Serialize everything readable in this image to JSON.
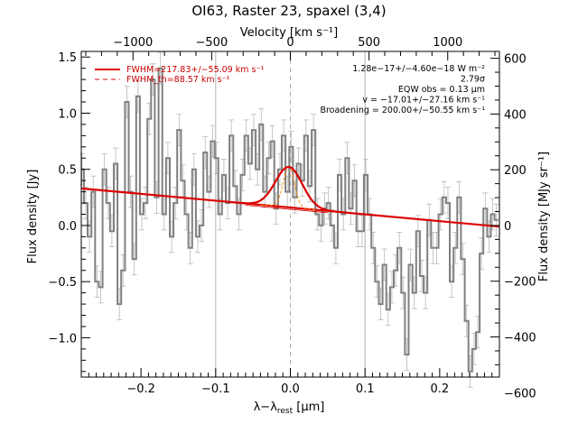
{
  "chart_data": {
    "type": "line",
    "title": "OI63, Raster 23, spaxel (3,4)",
    "xlabel": "λ−λrest [μm]",
    "ylabel_left": "Flux density [Jy]",
    "ylabel_right": "Flux density [MJy sr⁻¹]",
    "xlabel_top": "Velocity [km s⁻¹]",
    "xlim": [
      -0.28,
      0.28
    ],
    "ylim": [
      -1.35,
      1.55
    ],
    "xticks": [
      -0.2,
      -0.1,
      0.0,
      0.1,
      0.2
    ],
    "xtick_labels": [
      "−0.2",
      "−0.1",
      "0.0",
      "0.1",
      "0.2"
    ],
    "yticks": [
      -1.0,
      -0.5,
      0.0,
      0.5,
      1.0,
      1.5
    ],
    "ytick_labels": [
      "−1.0",
      "−0.5",
      "0.0",
      "0.5",
      "1.0",
      "1.5"
    ],
    "top_ticks": [
      -1000,
      -500,
      0,
      500,
      1000
    ],
    "top_tick_labels": [
      "−1000",
      "−500",
      "0",
      "500",
      "1000"
    ],
    "right_ticks": [
      -600,
      -400,
      -200,
      0,
      200,
      400,
      600
    ],
    "right_tick_labels": [
      "−600",
      "−400",
      "−200",
      "0",
      "200",
      "400",
      "600"
    ],
    "vlines": [
      -0.1,
      0.0,
      0.1
    ],
    "legend": [
      {
        "label": "FWHM=217.83+/−55.09 km s⁻¹",
        "color": "#dd0000",
        "style": "solid"
      },
      {
        "label": "FWHM_th=88.57 km s⁻¹",
        "color": "#dd0000",
        "style": "dashed"
      }
    ],
    "annotations": [
      "1.28e−17+/−4.60e−18 W m⁻²",
      "2.79σ",
      "EQW obs = 0.13 μm",
      "v = −17.01+/−27.16 km s⁻¹",
      "Broadening = 200.00+/−50.55 km s⁻¹"
    ],
    "baseline": {
      "x": [
        -0.28,
        0.28
      ],
      "y": [
        0.33,
        -0.01
      ]
    },
    "gaussian": {
      "center": -0.002,
      "amplitude": 0.36,
      "sigma": 0.018
    },
    "thermal_gaussian": {
      "center": -0.002,
      "amplitude": 0.36,
      "sigma": 0.0075
    },
    "colors": {
      "data": "#808080",
      "fit": "#dd0000",
      "thermal": "#ff8800",
      "vline": "#b0b0b0"
    },
    "series": [
      {
        "x": [
          -0.279,
          -0.274,
          -0.269,
          -0.264,
          -0.259,
          -0.254,
          -0.249,
          -0.244,
          -0.239,
          -0.234,
          -0.229,
          -0.224,
          -0.219,
          -0.214,
          -0.209,
          -0.204,
          -0.199,
          -0.194,
          -0.189,
          -0.184,
          -0.179,
          -0.174,
          -0.169,
          -0.164,
          -0.159,
          -0.154,
          -0.149,
          -0.144,
          -0.139,
          -0.134,
          -0.129,
          -0.124,
          -0.119,
          -0.114,
          -0.109,
          -0.104,
          -0.099,
          -0.094,
          -0.089,
          -0.084,
          -0.079,
          -0.074,
          -0.069,
          -0.064,
          -0.059,
          -0.054,
          -0.049,
          -0.044,
          -0.039,
          -0.034,
          -0.029,
          -0.024,
          -0.019,
          -0.014,
          -0.009,
          -0.004,
          0.001,
          0.006,
          0.011,
          0.016,
          0.021,
          0.026,
          0.031,
          0.036,
          0.041,
          0.046,
          0.051,
          0.056,
          0.061,
          0.066,
          0.071,
          0.076,
          0.081,
          0.086,
          0.091,
          0.096,
          0.101,
          0.106,
          0.111,
          0.116,
          0.121,
          0.126,
          0.131,
          0.136,
          0.141,
          0.146,
          0.151,
          0.156,
          0.161,
          0.166,
          0.171,
          0.176,
          0.181,
          0.186,
          0.191,
          0.196,
          0.201,
          0.206,
          0.211,
          0.216,
          0.221,
          0.226,
          0.231,
          0.236,
          0.241,
          0.246,
          0.251,
          0.256,
          0.261,
          0.266,
          0.271,
          0.276
        ],
        "y": [
          0.5,
          0.2,
          -0.1,
          0.3,
          -0.5,
          -0.55,
          0.5,
          0.2,
          -0.05,
          0.55,
          -0.7,
          -0.4,
          1.1,
          0.3,
          -0.3,
          1.15,
          0.1,
          0.2,
          0.95,
          1.3,
          0.25,
          1.4,
          0.1,
          0.6,
          -0.1,
          0.2,
          0.85,
          0.4,
          0.1,
          -0.2,
          0.5,
          -0.1,
          0.0,
          0.65,
          0.3,
          0.75,
          0.6,
          0.1,
          0.45,
          0.2,
          0.8,
          0.35,
          0.1,
          0.45,
          0.8,
          0.55,
          0.85,
          0.5,
          0.9,
          0.3,
          0.6,
          0.75,
          0.15,
          0.5,
          0.8,
          0.3,
          0.7,
          0.25,
          0.55,
          0.4,
          0.8,
          0.35,
          0.85,
          0.1,
          0.0,
          0.15,
          0.2,
          0.0,
          -0.2,
          0.45,
          0.1,
          0.6,
          0.15,
          0.4,
          -0.05,
          -0.05,
          0.45,
          0.1,
          -0.2,
          -0.5,
          -0.7,
          -0.35,
          -0.75,
          -0.55,
          -0.4,
          -0.2,
          -0.6,
          -1.15,
          -0.35,
          -0.6,
          -0.05,
          -0.45,
          -0.6,
          0.05,
          -0.2,
          -0.2,
          0.1,
          0.25,
          0.2,
          -0.5,
          -0.2,
          0.25,
          -0.3,
          -0.85,
          -1.3,
          -1.1,
          -0.95,
          -0.25,
          0.15,
          -0.1,
          0.1,
          0.05
        ],
        "err": 0.14
      }
    ]
  }
}
